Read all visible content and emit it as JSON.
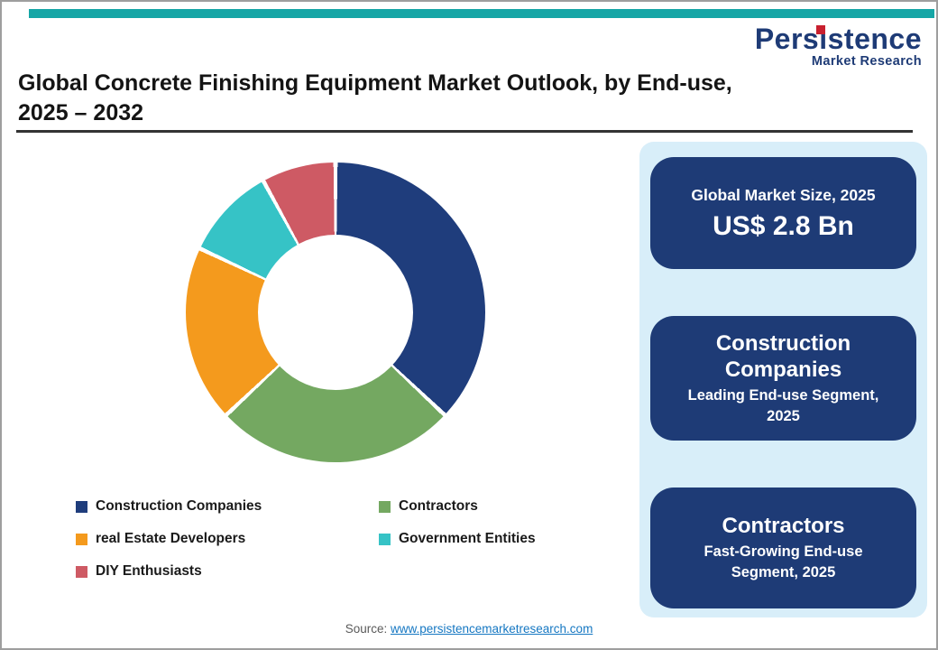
{
  "colors": {
    "top_strip": "#16A6A6",
    "panel_bg": "#D8EEF9",
    "card_bg": "#1E3B76",
    "title_rule": "#333333",
    "logo_navy": "#1E3B76",
    "logo_accent_red": "#C8202F",
    "link": "#1577C2"
  },
  "logo": {
    "line1": "Persistence",
    "line2": "Market Research"
  },
  "title": {
    "line1": "Global Concrete Finishing Equipment Market Outlook, by End-use,",
    "line2": "2025 – 2032"
  },
  "chart_data": {
    "type": "pie",
    "donut": true,
    "title": "Global Concrete Finishing Equipment Market Outlook, by End-use, 2025 – 2032",
    "legend_position": "bottom",
    "start_angle_deg": 0,
    "segments": [
      {
        "label": "Construction Companies",
        "value": 37,
        "color": "#1F3D7C"
      },
      {
        "label": "Contractors",
        "value": 26,
        "color": "#74A861"
      },
      {
        "label": "real Estate Developers",
        "value": 19,
        "color": "#F49A1D"
      },
      {
        "label": "Government Entities",
        "value": 10,
        "color": "#36C3C6"
      },
      {
        "label": "DIY Enthusiasts",
        "value": 8,
        "color": "#CE5A64"
      }
    ]
  },
  "panel": {
    "cards": [
      {
        "label": "Global Market Size, 2025",
        "value": "US$ 2.8 Bn"
      },
      {
        "title": "Construction Companies",
        "subtitle": "Leading End-use Segment, 2025"
      },
      {
        "title": "Contractors",
        "subtitle": "Fast-Growing End-use Segment, 2025"
      }
    ]
  },
  "footer": {
    "source_label": "Source:",
    "source_link": "www.persistencemarketresearch.com"
  }
}
